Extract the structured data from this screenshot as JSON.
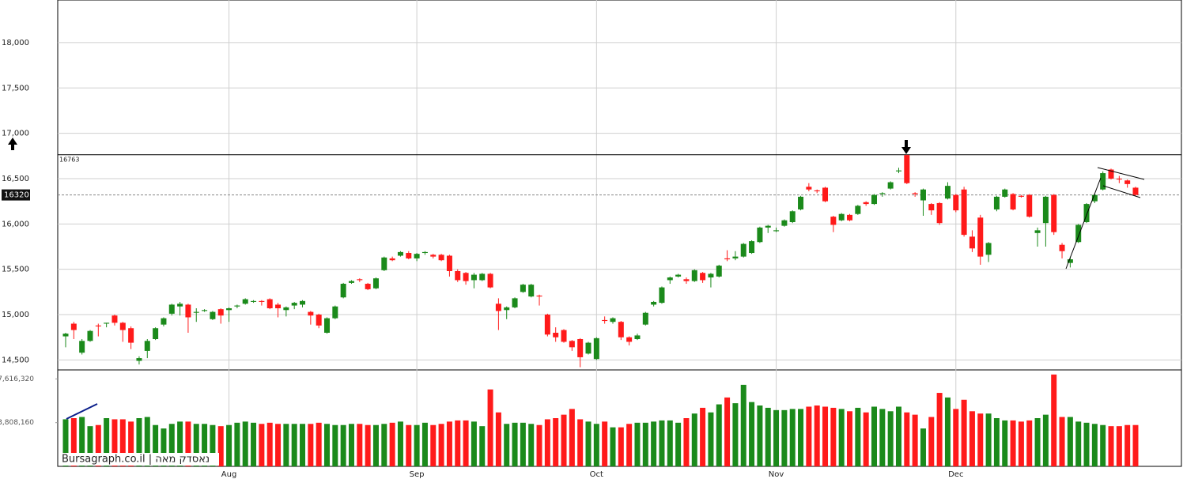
{
  "chart_data": {
    "type": "candlestick",
    "source": "Bursagraph.co.il | נאסדק מאה",
    "categories": [
      null,
      null,
      null,
      null,
      null,
      null,
      null,
      null,
      null,
      null,
      null,
      null,
      null,
      null,
      null,
      null,
      null,
      null,
      null,
      null,
      "Aug",
      null,
      null,
      null,
      null,
      null,
      null,
      null,
      null,
      null,
      null,
      null,
      null,
      null,
      null,
      null,
      null,
      null,
      null,
      null,
      null,
      null,
      null,
      "Sep",
      null,
      null,
      null,
      null,
      null,
      null,
      null,
      null,
      null,
      null,
      null,
      null,
      null,
      null,
      null,
      null,
      null,
      null,
      null,
      null,
      null,
      "Oct",
      null,
      null,
      null,
      null,
      null,
      null,
      null,
      null,
      null,
      null,
      null,
      null,
      null,
      null,
      null,
      null,
      null,
      null,
      null,
      null,
      null,
      "Nov",
      null,
      null,
      null,
      null,
      null,
      null,
      null,
      null,
      null,
      null,
      null,
      null,
      null,
      null,
      null,
      null,
      null,
      null,
      null,
      null,
      null,
      "Dec",
      null,
      null,
      null,
      null,
      null,
      null,
      null,
      null,
      null,
      null,
      null,
      null,
      null,
      null,
      null,
      null,
      null,
      null,
      null,
      null,
      null,
      null
    ],
    "open": [
      14760,
      14900,
      14580,
      14710,
      14880,
      14900,
      14990,
      14910,
      14850,
      14490,
      14600,
      14730,
      14890,
      15010,
      15090,
      15110,
      15020,
      15040,
      14950,
      15060,
      15050,
      15090,
      15120,
      15140,
      15150,
      15170,
      15110,
      15050,
      15100,
      15110,
      15030,
      15000,
      14800,
      14960,
      15190,
      15350,
      15390,
      15340,
      15290,
      15490,
      15620,
      15650,
      15680,
      15620,
      15680,
      15660,
      15660,
      15650,
      15480,
      15460,
      15380,
      15380,
      15450,
      15120,
      15050,
      15080,
      15250,
      15200,
      15210,
      15000,
      14800,
      14830,
      14710,
      14730,
      14570,
      14510,
      14940,
      14920,
      14920,
      14750,
      14730,
      14890,
      15110,
      15130,
      15380,
      15420,
      15390,
      15370,
      15460,
      15410,
      15420,
      15620,
      15620,
      15640,
      15680,
      15800,
      15960,
      15920,
      15980,
      16020,
      16160,
      16410,
      16370,
      16400,
      16080,
      16040,
      16100,
      16110,
      16240,
      16220,
      16330,
      16390,
      16580,
      16760,
      16340,
      16260,
      16220,
      16230,
      16280,
      16320,
      16380,
      15860,
      16070,
      15660,
      16160,
      16300,
      16330,
      16310,
      16320,
      15900,
      16010,
      16320,
      15770,
      15570,
      15800,
      16020,
      16250,
      16380,
      16600,
      16500,
      16480,
      16400
    ],
    "high": [
      14800,
      14920,
      14730,
      14830,
      14900,
      14910,
      15000,
      14920,
      14870,
      14540,
      14730,
      14860,
      14970,
      15120,
      15140,
      15120,
      15070,
      15060,
      15040,
      15070,
      15080,
      15110,
      15180,
      15160,
      15160,
      15180,
      15130,
      15090,
      15140,
      15160,
      15040,
      15010,
      14970,
      15100,
      15350,
      15380,
      15400,
      15350,
      15410,
      15640,
      15640,
      15700,
      15700,
      15680,
      15700,
      15670,
      15670,
      15660,
      15500,
      15470,
      15460,
      15460,
      15460,
      15180,
      15090,
      15190,
      15340,
      15340,
      15220,
      15010,
      14860,
      14840,
      14720,
      14740,
      14700,
      14750,
      14980,
      14970,
      14930,
      14760,
      14790,
      15030,
      15150,
      15310,
      15420,
      15450,
      15410,
      15500,
      15470,
      15460,
      15550,
      15710,
      15700,
      15790,
      15820,
      15970,
      15990,
      15960,
      16050,
      16150,
      16310,
      16450,
      16380,
      16410,
      16090,
      16120,
      16110,
      16210,
      16250,
      16330,
      16350,
      16470,
      16620,
      16763,
      16350,
      16390,
      16230,
      16240,
      16460,
      16330,
      16410,
      15930,
      16100,
      15800,
      16310,
      16390,
      16340,
      16320,
      16330,
      15960,
      16310,
      16330,
      15790,
      15640,
      16000,
      16230,
      16330,
      16580,
      16610,
      16530,
      16490,
      16410
    ],
    "low": [
      14640,
      14730,
      14560,
      14700,
      14760,
      14860,
      14880,
      14700,
      14620,
      14450,
      14520,
      14720,
      14870,
      14990,
      14990,
      14800,
      14920,
      15030,
      14940,
      14900,
      14920,
      15070,
      15110,
      15130,
      15100,
      15060,
      14970,
      14980,
      15060,
      15080,
      14890,
      14850,
      14790,
      14950,
      15180,
      15340,
      15360,
      15270,
      15280,
      15480,
      15590,
      15640,
      15610,
      15590,
      15660,
      15620,
      15590,
      15420,
      15360,
      15330,
      15290,
      15370,
      15290,
      14830,
      14950,
      15070,
      15240,
      15190,
      15100,
      14760,
      14700,
      14690,
      14600,
      14420,
      14560,
      14500,
      14900,
      14900,
      14720,
      14660,
      14720,
      14880,
      15090,
      15120,
      15340,
      15410,
      15340,
      15360,
      15350,
      15300,
      15410,
      15590,
      15600,
      15630,
      15670,
      15790,
      15900,
      15910,
      15970,
      16010,
      16150,
      16360,
      16340,
      16240,
      15910,
      16030,
      16030,
      16100,
      16200,
      16210,
      16300,
      16380,
      16560,
      16440,
      16300,
      16090,
      16100,
      15990,
      16270,
      16130,
      15860,
      15690,
      15550,
      15580,
      16140,
      16290,
      16150,
      16290,
      16070,
      15750,
      15750,
      15880,
      15620,
      15520,
      15790,
      16010,
      16230,
      16370,
      16490,
      16450,
      16400,
      16310
    ],
    "close": [
      14790,
      14830,
      14710,
      14820,
      14870,
      14910,
      14910,
      14830,
      14690,
      14520,
      14710,
      14850,
      14960,
      15110,
      15120,
      14970,
      15030,
      15050,
      15030,
      14990,
      15070,
      15100,
      15170,
      15150,
      15140,
      15070,
      15070,
      15080,
      15130,
      15150,
      14990,
      14880,
      14960,
      15090,
      15340,
      15370,
      15380,
      15280,
      15400,
      15630,
      15600,
      15690,
      15620,
      15670,
      15690,
      15640,
      15600,
      15480,
      15380,
      15370,
      15440,
      15450,
      15300,
      15040,
      15080,
      15180,
      15330,
      15330,
      15200,
      14780,
      14750,
      14700,
      14640,
      14530,
      14690,
      14740,
      14930,
      14960,
      14750,
      14700,
      14770,
      15020,
      15140,
      15300,
      15410,
      15440,
      15370,
      15490,
      15380,
      15450,
      15540,
      15610,
      15640,
      15780,
      15810,
      15960,
      15980,
      15930,
      16040,
      16140,
      16300,
      16380,
      16360,
      16250,
      15990,
      16110,
      16040,
      16200,
      16220,
      16320,
      16340,
      16460,
      16590,
      16450,
      16330,
      16380,
      16150,
      16010,
      16420,
      16150,
      15880,
      15730,
      15640,
      15790,
      16300,
      16380,
      16160,
      16300,
      16080,
      15930,
      16300,
      15910,
      15700,
      15610,
      15990,
      16220,
      16320,
      16560,
      16500,
      16490,
      16440,
      16320
    ],
    "up_color": "#1b8a1b",
    "down_color": "#ff1a1a",
    "ylim": [
      14390,
      18470
    ],
    "yticks": [
      {
        "value": 14500,
        "label": "14,500"
      },
      {
        "value": 15000,
        "label": "15,000"
      },
      {
        "value": 15500,
        "label": "15,500"
      },
      {
        "value": 16000,
        "label": "16,000"
      },
      {
        "value": 16500,
        "label": "16,500"
      },
      {
        "value": 17000,
        "label": "17,000"
      },
      {
        "value": 17500,
        "label": "17,500"
      },
      {
        "value": 18000,
        "label": "18,000"
      }
    ],
    "resistance": 16763,
    "last_price": 16320,
    "grid": true,
    "volume": {
      "values": [
        4100000,
        4200000,
        4300000,
        3500000,
        3600000,
        4200000,
        4100000,
        4100000,
        3900000,
        4200000,
        4300000,
        3600000,
        3300000,
        3700000,
        3900000,
        3900000,
        3700000,
        3700000,
        3600000,
        3500000,
        3600000,
        3800000,
        3900000,
        3800000,
        3700000,
        3800000,
        3700000,
        3700000,
        3700000,
        3700000,
        3700000,
        3800000,
        3700000,
        3600000,
        3600000,
        3700000,
        3700000,
        3600000,
        3600000,
        3700000,
        3800000,
        3900000,
        3600000,
        3600000,
        3800000,
        3600000,
        3700000,
        3900000,
        4000000,
        4000000,
        3900000,
        3500000,
        6700000,
        4700000,
        3700000,
        3800000,
        3800000,
        3700000,
        3600000,
        4100000,
        4200000,
        4500000,
        5000000,
        4100000,
        3900000,
        3700000,
        3900000,
        3400000,
        3400000,
        3700000,
        3800000,
        3800000,
        3900000,
        4000000,
        4000000,
        3800000,
        4200000,
        4600000,
        5100000,
        4700000,
        5400000,
        6000000,
        5500000,
        7100000,
        5600000,
        5300000,
        5100000,
        4900000,
        4900000,
        5000000,
        5000000,
        5200000,
        5300000,
        5200000,
        5100000,
        5000000,
        4800000,
        5100000,
        4700000,
        5200000,
        5000000,
        4800000,
        5200000,
        4700000,
        4500000,
        3300000,
        4300000,
        6400000,
        6000000,
        5000000,
        5800000,
        4800000,
        4600000,
        4600000,
        4200000,
        4000000,
        4000000,
        3900000,
        4000000,
        4200000,
        4500000,
        8000000,
        4300000,
        4300000,
        3900000,
        3800000,
        3700000,
        3600000,
        3500000,
        3500000,
        3600000,
        3600000
      ],
      "ylim": [
        0,
        8400000
      ],
      "yticks": [
        {
          "value": 3808160,
          "label": "3,808,160"
        },
        {
          "value": 7616320,
          "label": "7,616,320"
        }
      ]
    }
  }
}
